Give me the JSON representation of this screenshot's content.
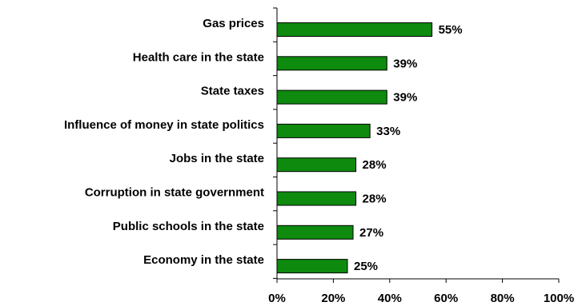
{
  "chart_data": {
    "type": "bar",
    "orientation": "horizontal",
    "categories": [
      "Gas prices",
      "Health care in the state",
      "State taxes",
      "Influence of money in state politics",
      "Jobs in the state",
      "Corruption in state government",
      "Public schools in the state",
      "Economy in the state"
    ],
    "values": [
      55,
      39,
      39,
      33,
      28,
      28,
      27,
      25
    ],
    "value_labels": [
      "55%",
      "39%",
      "39%",
      "33%",
      "28%",
      "28%",
      "27%",
      "25%"
    ],
    "xlim": [
      0,
      100
    ],
    "x_ticks": [
      0,
      20,
      40,
      60,
      80,
      100
    ],
    "x_tick_labels": [
      "0%",
      "20%",
      "40%",
      "60%",
      "80%",
      "100%"
    ],
    "title": "",
    "xlabel": "",
    "ylabel": "",
    "grid": false,
    "legend": "none",
    "colors": {
      "bar": "#0e8a0e",
      "bar_edge": "#000000",
      "axis": "#000000",
      "text": "#000000"
    }
  }
}
